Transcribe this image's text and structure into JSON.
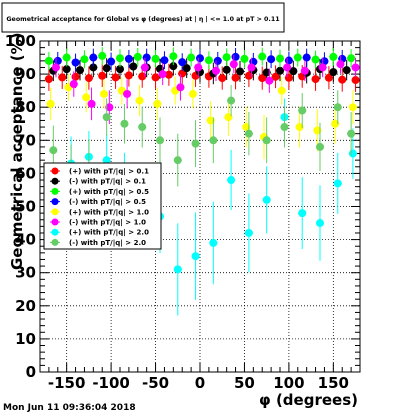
{
  "chart_data": {
    "type": "scatter",
    "title": "Geometrical acceptance for Global vs φ (degrees) at | η | <= 1.0 at pT > 0.11",
    "xlabel": "φ (degrees)",
    "ylabel": "Geometrical acceptance (%)",
    "xlim": [
      -180,
      180
    ],
    "ylim": [
      0,
      100
    ],
    "x_ticks": [
      -150,
      -100,
      -50,
      0,
      50,
      100,
      150
    ],
    "y_ticks": [
      0,
      10,
      20,
      30,
      40,
      50,
      60,
      70,
      80,
      90,
      100
    ],
    "grid": true,
    "legend_position": "middle-left",
    "series": [
      {
        "name": "(+) with pT/|q| > 0.1",
        "color": "#ff0000",
        "marker": "circle",
        "x": [
          -170,
          -155,
          -140,
          -125,
          -110,
          -95,
          -80,
          -65,
          -50,
          -35,
          -20,
          -5,
          10,
          25,
          40,
          55,
          70,
          85,
          100,
          115,
          130,
          145,
          160,
          175
        ],
        "y": [
          88.5,
          89,
          89.2,
          88.8,
          89.5,
          89,
          89.6,
          89.3,
          89,
          89.8,
          90.2,
          89.5,
          89.3,
          88.8,
          88.9,
          89.5,
          88.8,
          89.2,
          88.9,
          89.3,
          88.5,
          88.9,
          88.3,
          88.2
        ]
      },
      {
        "name": "(-) with pT/|q| > 0.1",
        "color": "#000000",
        "marker": "circle",
        "x": [
          -165,
          -150,
          -135,
          -120,
          -105,
          -90,
          -75,
          -60,
          -45,
          -30,
          -15,
          0,
          15,
          30,
          45,
          60,
          75,
          90,
          105,
          120,
          135,
          150,
          165
        ],
        "y": [
          91,
          91.5,
          91.2,
          92,
          91.8,
          91.5,
          92.3,
          92,
          91.6,
          92.4,
          91.8,
          90.6,
          90.2,
          91.3,
          90.8,
          91.2,
          90.5,
          91,
          90.9,
          90.4,
          91.5,
          90.6,
          91.2
        ]
      },
      {
        "name": "(+) with pT/|q| > 0.5",
        "color": "#00ff00",
        "marker": "circle",
        "x": [
          -170,
          -150,
          -130,
          -110,
          -90,
          -70,
          -50,
          -30,
          -10,
          10,
          30,
          50,
          70,
          90,
          110,
          130,
          150,
          170
        ],
        "y": [
          94,
          95,
          94.5,
          95.5,
          94.8,
          95.2,
          94.6,
          95.4,
          95,
          94.2,
          95.1,
          94.6,
          95.3,
          94.7,
          95,
          94.4,
          95.2,
          94.8
        ]
      },
      {
        "name": "(-) with pT/|q| > 0.5",
        "color": "#0000ff",
        "marker": "circle",
        "x": [
          -160,
          -140,
          -120,
          -100,
          -80,
          -60,
          -40,
          -20,
          0,
          20,
          40,
          60,
          80,
          100,
          120,
          140,
          160
        ],
        "y": [
          94,
          93.5,
          95,
          93.8,
          94.6,
          95,
          94.2,
          93.6,
          94.8,
          94,
          95.2,
          93.7,
          94.5,
          94.1,
          95,
          93.9,
          94.6
        ]
      },
      {
        "name": "(+) with pT/|q| > 1.0",
        "color": "#ffff00",
        "marker": "circle",
        "x": [
          -168,
          -148,
          -128,
          -108,
          -88,
          -68,
          -48,
          -28,
          -8,
          12,
          32,
          52,
          72,
          92,
          112,
          132,
          152,
          172
        ],
        "y": [
          81,
          86,
          83,
          84,
          85,
          82,
          81,
          85,
          84,
          76,
          77,
          74,
          71,
          85,
          74,
          73,
          75,
          80
        ]
      },
      {
        "name": "(-) with pT/|q| > 1.0",
        "color": "#ff00ff",
        "marker": "circle",
        "x": [
          -162,
          -142,
          -122,
          -102,
          -82,
          -62,
          -42,
          -22,
          -2,
          18,
          38,
          58,
          78,
          98,
          118,
          138,
          158,
          175
        ],
        "y": [
          92,
          87,
          81,
          80,
          84,
          92,
          90,
          86,
          92,
          91,
          93,
          92,
          88,
          92,
          91,
          92,
          93,
          92
        ]
      },
      {
        "name": "(+) with pT/|q| > 2.0",
        "color": "#00ffff",
        "marker": "circle",
        "x": [
          -165,
          -145,
          -125,
          -105,
          -85,
          -65,
          -45,
          -25,
          -5,
          15,
          35,
          55,
          75,
          95,
          115,
          135,
          155,
          172
        ],
        "y": [
          48,
          63,
          65,
          64,
          57,
          52,
          47,
          31,
          35,
          39,
          58,
          42,
          52,
          77,
          48,
          45,
          57,
          66
        ]
      },
      {
        "name": "(-) with pT/|q| > 2.0",
        "color": "#66cc66",
        "marker": "circle",
        "x": [
          -165,
          -145,
          -125,
          -105,
          -85,
          -65,
          -45,
          -25,
          -5,
          15,
          35,
          55,
          75,
          95,
          115,
          135,
          155,
          170
        ],
        "y": [
          67,
          60,
          62,
          77,
          75,
          74,
          70,
          64,
          69,
          70,
          82,
          72,
          70,
          74,
          79,
          68,
          80,
          72
        ]
      }
    ]
  },
  "footer": {
    "timestamp": "Mon Jun 11 09:36:04 2018"
  }
}
